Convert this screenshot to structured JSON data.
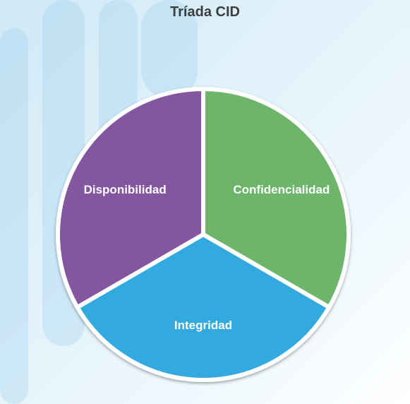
{
  "title": "Tríada CID",
  "chart_data": {
    "type": "pie",
    "slices": [
      {
        "label": "Confidencialidad",
        "value": 1,
        "color": "#6cb56a"
      },
      {
        "label": "Integridad",
        "value": 1,
        "color": "#33aadf"
      },
      {
        "label": "Disponibilidad",
        "value": 1,
        "color": "#83579f"
      }
    ],
    "colors": {
      "background": "#e4f3fb",
      "separator": "#ffffff",
      "title": "#3d3d3d"
    }
  }
}
